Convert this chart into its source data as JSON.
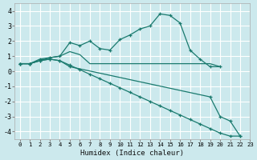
{
  "xlabel": "Humidex (Indice chaleur)",
  "ylabel": "",
  "xlim": [
    -0.5,
    23
  ],
  "ylim": [
    -4.5,
    4.5
  ],
  "bg_color": "#cce9ed",
  "grid_color": "#ffffff",
  "line_color": "#1a7a6e",
  "series": [
    {
      "x": [
        0,
        1,
        2,
        3,
        4,
        5,
        6,
        7,
        8,
        9,
        10,
        11,
        12,
        13,
        14,
        15,
        16,
        17,
        18,
        19,
        20
      ],
      "y": [
        0.5,
        0.5,
        0.8,
        0.9,
        1.0,
        1.9,
        1.7,
        2.0,
        1.5,
        1.4,
        2.1,
        2.4,
        2.8,
        3.0,
        3.8,
        3.7,
        3.2,
        1.4,
        0.8,
        0.3,
        0.3
      ],
      "marker": true
    },
    {
      "x": [
        0,
        1,
        2,
        3,
        4,
        5,
        6,
        7,
        8,
        9,
        10,
        11,
        12,
        13,
        14,
        15,
        16,
        17,
        18,
        19,
        20
      ],
      "y": [
        0.5,
        0.5,
        0.7,
        0.9,
        1.0,
        1.3,
        1.1,
        0.5,
        0.5,
        0.5,
        0.5,
        0.5,
        0.5,
        0.5,
        0.5,
        0.5,
        0.5,
        0.5,
        0.5,
        0.5,
        0.3
      ],
      "marker": false
    },
    {
      "x": [
        0,
        1,
        2,
        3,
        4,
        5,
        6,
        7,
        8,
        9,
        10,
        11,
        12,
        13,
        14,
        15,
        16,
        17,
        18,
        19,
        20,
        21,
        22
      ],
      "y": [
        0.5,
        0.5,
        0.7,
        0.8,
        0.7,
        0.4,
        0.1,
        -0.2,
        -0.5,
        -0.8,
        -1.1,
        -1.4,
        -1.7,
        -2.0,
        -2.3,
        -2.6,
        -2.9,
        -3.2,
        -3.5,
        -3.8,
        -4.1,
        -4.3,
        -4.3
      ],
      "marker": true
    },
    {
      "x": [
        0,
        1,
        2,
        3,
        4,
        5,
        19,
        20,
        21,
        22
      ],
      "y": [
        0.5,
        0.5,
        0.7,
        0.8,
        0.7,
        0.3,
        -1.7,
        -3.0,
        -3.3,
        -4.3
      ],
      "marker": true
    }
  ],
  "xticks": [
    0,
    1,
    2,
    3,
    4,
    5,
    6,
    7,
    8,
    9,
    10,
    11,
    12,
    13,
    14,
    15,
    16,
    17,
    18,
    19,
    20,
    21,
    22,
    23
  ],
  "yticks": [
    -4,
    -3,
    -2,
    -1,
    0,
    1,
    2,
    3,
    4
  ]
}
